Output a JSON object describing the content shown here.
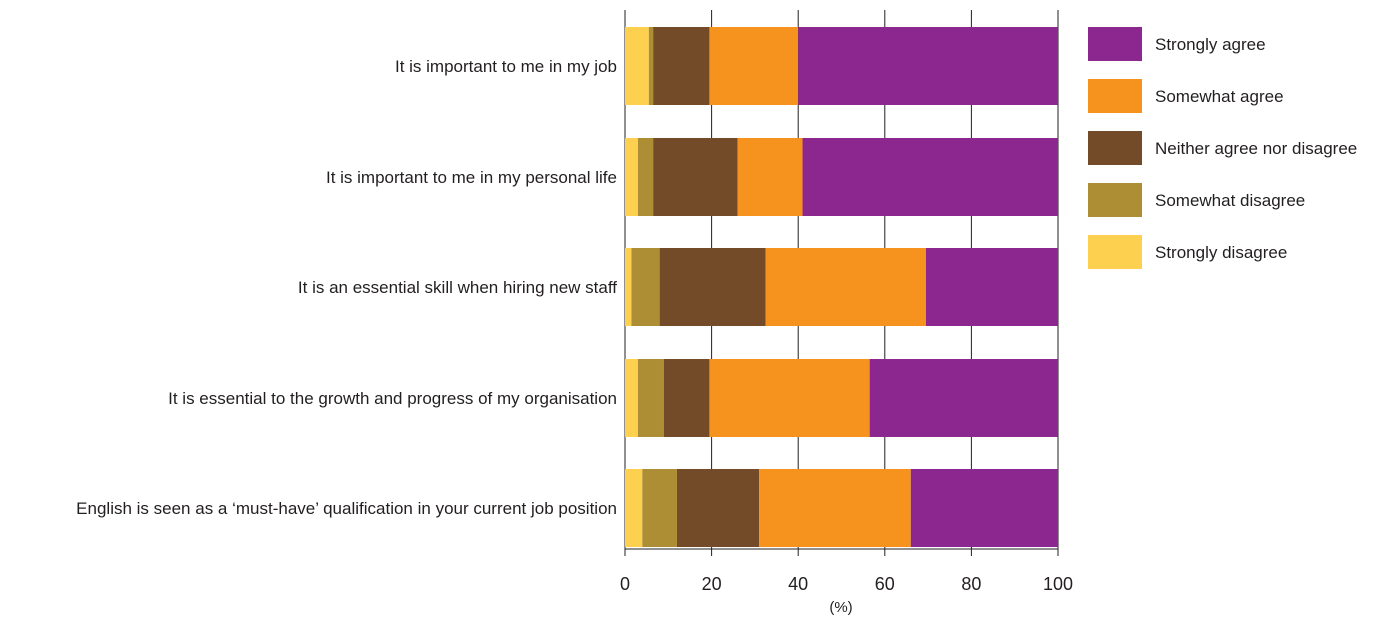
{
  "chart_data": {
    "type": "bar",
    "orientation": "horizontal",
    "stacked": true,
    "categories": [
      "It is important to me in my job",
      "It is important to me in my personal life",
      "It is an essential skill when hiring new staff",
      "It is essential to the growth and progress of my organisation",
      "English is seen as a ‘must-have’ qualification in your current job position"
    ],
    "series": [
      {
        "name": "Strongly disagree",
        "color": "#fdd04f",
        "values": [
          5.5,
          3,
          1.5,
          3,
          4
        ]
      },
      {
        "name": "Somewhat disagree",
        "color": "#ad8e35",
        "values": [
          1,
          3.5,
          6.5,
          6,
          8
        ]
      },
      {
        "name": "Neither agree nor disagree",
        "color": "#744b28",
        "values": [
          13,
          19.5,
          24.5,
          10.5,
          19
        ]
      },
      {
        "name": "Somewhat agree",
        "color": "#f6921e",
        "values": [
          20.5,
          15,
          37,
          37,
          35
        ]
      },
      {
        "name": "Strongly agree",
        "color": "#8c278f",
        "values": [
          60,
          59,
          30.5,
          43.5,
          34
        ]
      }
    ],
    "legend_order": [
      "Strongly agree",
      "Somewhat agree",
      "Neither agree nor disagree",
      "Somewhat disagree",
      "Strongly disagree"
    ],
    "xlim": [
      0,
      100
    ],
    "xticks": [
      0,
      20,
      40,
      60,
      80,
      100
    ],
    "xlabel": "(%)",
    "ylabel": "",
    "title": "",
    "grid": "vertical",
    "legend_position": "right"
  }
}
